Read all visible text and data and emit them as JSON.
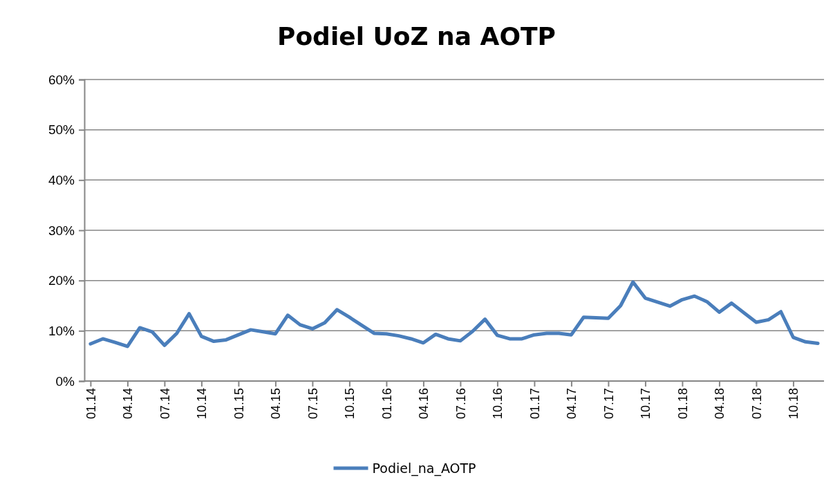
{
  "chart_data": {
    "type": "line",
    "title": "Podiel UoZ na AOTP",
    "categories": [
      "01.14",
      null,
      null,
      "04.14",
      null,
      null,
      "07.14",
      null,
      null,
      "10.14",
      null,
      null,
      "01.15",
      null,
      null,
      "04.15",
      null,
      null,
      "07.15",
      null,
      null,
      "10.15",
      null,
      null,
      "01.16",
      null,
      null,
      "04.16",
      null,
      null,
      "07.16",
      null,
      null,
      "10.16",
      null,
      null,
      "01.17",
      null,
      null,
      "04.17",
      null,
      null,
      "07.17",
      null,
      null,
      "10.17",
      null,
      null,
      "01.18",
      null,
      null,
      "04.18",
      null,
      null,
      "07.18",
      null,
      null,
      "10.18",
      null,
      null
    ],
    "series": [
      {
        "name": "Podiel_na_AOTP",
        "color": "#4a7ebb",
        "values": [
          7.4,
          8.4,
          7.7,
          6.9,
          10.6,
          9.8,
          7.1,
          9.5,
          13.4,
          8.9,
          7.9,
          8.2,
          9.2,
          10.2,
          9.8,
          9.4,
          13.1,
          11.2,
          10.4,
          11.6,
          14.2,
          12.7,
          11.1,
          9.5,
          9.4,
          9.0,
          8.4,
          7.6,
          9.3,
          8.4,
          8.0,
          9.9,
          12.3,
          9.1,
          8.4,
          8.4,
          9.2,
          9.5,
          9.5,
          9.2,
          12.7,
          12.6,
          12.5,
          15.0,
          19.7,
          16.5,
          15.7,
          14.9,
          16.2,
          16.9,
          15.8,
          13.7,
          15.5,
          13.6,
          11.7,
          12.2,
          13.8,
          8.7,
          7.8,
          7.5
        ]
      }
    ],
    "ylim": [
      0,
      60
    ],
    "yticks": [
      {
        "value": 0,
        "label": "0%"
      },
      {
        "value": 10,
        "label": "10%"
      },
      {
        "value": 20,
        "label": "20%"
      },
      {
        "value": 30,
        "label": "30%"
      },
      {
        "value": 40,
        "label": "40%"
      },
      {
        "value": 50,
        "label": "50%"
      },
      {
        "value": 60,
        "label": "60%"
      }
    ],
    "grid": "y",
    "legend": "bottom",
    "marker": "none",
    "line_style": "solid"
  }
}
